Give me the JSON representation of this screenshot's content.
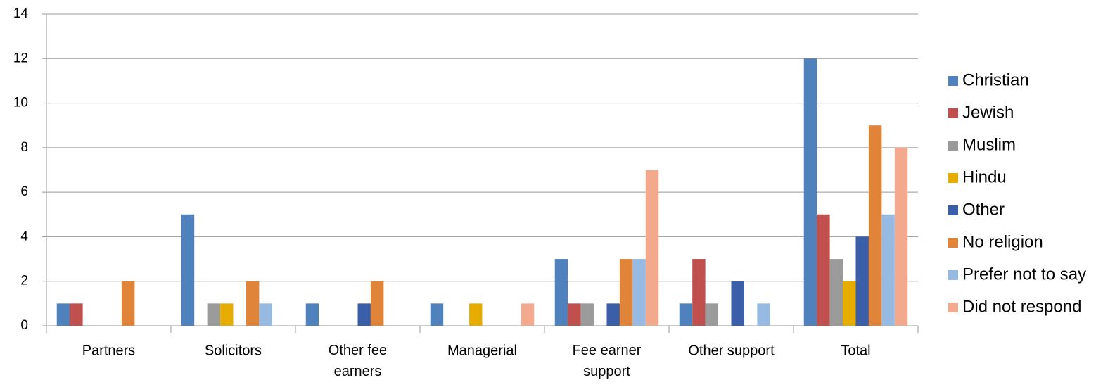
{
  "chart_data": {
    "type": "bar",
    "categories": [
      "Partners",
      "Solicitors",
      "Other fee earners",
      "Managerial",
      "Fee earner support",
      "Other support",
      "Total"
    ],
    "series": [
      {
        "name": "Christian",
        "color": "#4f81bd",
        "values": [
          1,
          5,
          1,
          1,
          3,
          1,
          12
        ]
      },
      {
        "name": "Jewish",
        "color": "#c0504d",
        "values": [
          1,
          0,
          0,
          0,
          1,
          3,
          5
        ]
      },
      {
        "name": "Muslim",
        "color": "#9b9b9b",
        "values": [
          0,
          1,
          0,
          0,
          1,
          1,
          3
        ]
      },
      {
        "name": "Hindu",
        "color": "#e6ad00",
        "values": [
          0,
          1,
          0,
          1,
          0,
          0,
          2
        ]
      },
      {
        "name": "Other",
        "color": "#3a5ea8",
        "values": [
          0,
          0,
          1,
          0,
          1,
          2,
          4
        ]
      },
      {
        "name": "No religion",
        "color": "#e0843a",
        "values": [
          2,
          2,
          2,
          0,
          3,
          0,
          9
        ]
      },
      {
        "name": "Prefer not to say",
        "color": "#97bae2",
        "values": [
          0,
          1,
          0,
          0,
          3,
          1,
          5
        ]
      },
      {
        "name": "Did not respond",
        "color": "#f2a98e",
        "values": [
          0,
          0,
          0,
          1,
          7,
          0,
          8
        ]
      }
    ],
    "ylim": [
      0,
      14
    ],
    "yticks": [
      0,
      2,
      4,
      6,
      8,
      10,
      12,
      14
    ],
    "grid": true,
    "legend": "right"
  }
}
